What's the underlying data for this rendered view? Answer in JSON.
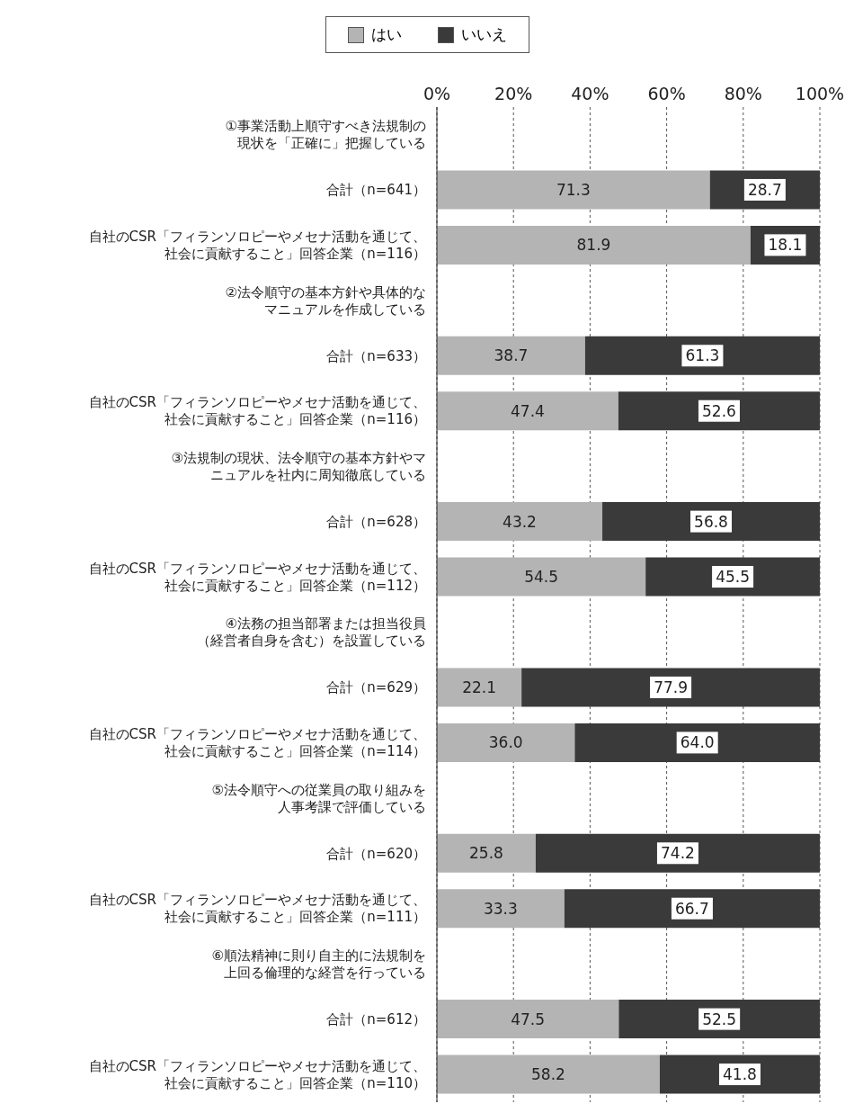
{
  "chart_data": {
    "type": "bar",
    "orientation": "horizontal",
    "stacked": true,
    "grid": "x",
    "legend": "top",
    "categories": [
      "①事業活動上順守すべき法規制の現状を「正確に」把握している",
      "合計（n=641）",
      "自社のCSR「フィランソロピーやメセナ活動を通じて、社会に貢献すること」回答企業（n=116）",
      "②法令順守の基本方針や具体的なマニュアルを作成している",
      "合計（n=633）",
      "自社のCSR「フィランソロピーやメセナ活動を通じて、社会に貢献すること」回答企業（n=116）",
      "③法規制の現状、法令順守の基本方針やマニュアルを社内に周知徹底している",
      "合計（n=628）",
      "自社のCSR「フィランソロピーやメセナ活動を通じて、社会に貢献すること」回答企業（n=112）",
      "④法務の担当部署または担当役員（経営者自身を含む）を設置している",
      "合計（n=629）",
      "自社のCSR「フィランソロピーやメセナ活動を通じて、社会に貢献すること」回答企業（n=114）",
      "⑤法令順守への従業員の取り組みを人事考課で評価している",
      "合計（n=620）",
      "自社のCSR「フィランソロピーやメセナ活動を通じて、社会に貢献すること」回答企業（n=111）",
      "⑥順法精神に則り自主的に法規制を上回る倫理的な経営を行っている",
      "合計（n=612）",
      "自社のCSR「フィランソロピーやメセナ活動を通じて、社会に貢献すること」回答企業（n=110）"
    ],
    "series": [
      {
        "name": "はい",
        "color": "#b4b4b4",
        "values": [
          null,
          71.3,
          81.9,
          null,
          38.7,
          47.4,
          null,
          43.2,
          54.5,
          null,
          22.1,
          36.0,
          null,
          25.8,
          33.3,
          null,
          47.5,
          58.2
        ],
        "value_labels": [
          null,
          "71.3",
          "81.9",
          null,
          "38.7",
          "47.4",
          null,
          "43.2",
          "54.5",
          null,
          "22.1",
          "36.0",
          null,
          "25.8",
          "33.3",
          null,
          "47.5",
          "58.2"
        ]
      },
      {
        "name": "いいえ",
        "color": "#3a3a3a",
        "values": [
          null,
          28.7,
          18.1,
          null,
          61.3,
          52.6,
          null,
          56.8,
          45.5,
          null,
          77.9,
          64.0,
          null,
          74.2,
          66.7,
          null,
          52.5,
          41.8
        ],
        "value_labels": [
          null,
          "28.7",
          "18.1",
          null,
          "61.3",
          "52.6",
          null,
          "56.8",
          "45.5",
          null,
          "77.9",
          "64.0",
          null,
          "74.2",
          "66.7",
          null,
          "52.5",
          "41.8"
        ]
      }
    ],
    "xlim": [
      0,
      100
    ],
    "xticks": [
      {
        "value": 0,
        "label": "0%"
      },
      {
        "value": 20,
        "label": "20%"
      },
      {
        "value": 40,
        "label": "40%"
      },
      {
        "value": 60,
        "label": "60%"
      },
      {
        "value": 80,
        "label": "80%"
      },
      {
        "value": 100,
        "label": "100%"
      }
    ]
  }
}
